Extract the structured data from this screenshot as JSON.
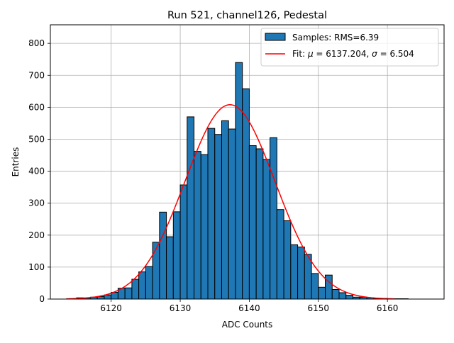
{
  "chart_data": {
    "type": "bar",
    "title": "Run 521, channel126, Pedestal",
    "xlabel": "ADC Counts",
    "ylabel": "Entries",
    "xlim": [
      6111.2,
      6168.2
    ],
    "ylim": [
      0,
      858
    ],
    "xticks": [
      6120,
      6130,
      6140,
      6150,
      6160
    ],
    "yticks": [
      0,
      100,
      200,
      300,
      400,
      500,
      600,
      700,
      800
    ],
    "grid": true,
    "legend_position": "top-right",
    "histogram": {
      "name": "Samples: RMS=6.39",
      "bin_start": 6115,
      "bin_width": 1,
      "values": [
        4,
        3,
        6,
        8,
        13,
        21,
        34,
        35,
        62,
        85,
        102,
        178,
        272,
        195,
        273,
        357,
        570,
        462,
        452,
        534,
        515,
        558,
        532,
        740,
        658,
        480,
        470,
        437,
        505,
        280,
        245,
        170,
        163,
        140,
        80,
        37,
        75,
        30,
        20,
        12,
        6,
        6,
        4,
        2,
        2,
        1,
        1,
        1
      ],
      "color": "#1f77b4",
      "edge_color": "#000000"
    },
    "fit": {
      "type": "gaussian",
      "mu": 6137.204,
      "sigma": 6.504,
      "amplitude": 608,
      "x_range": [
        6113.5,
        6161
      ],
      "legend_prefix": "Fit: ",
      "legend_mu_symbol": "μ",
      "legend_mu_text": " = 6137.204, ",
      "legend_sigma_symbol": "σ",
      "legend_sigma_text": " = 6.504",
      "color": "#ff0000"
    }
  }
}
